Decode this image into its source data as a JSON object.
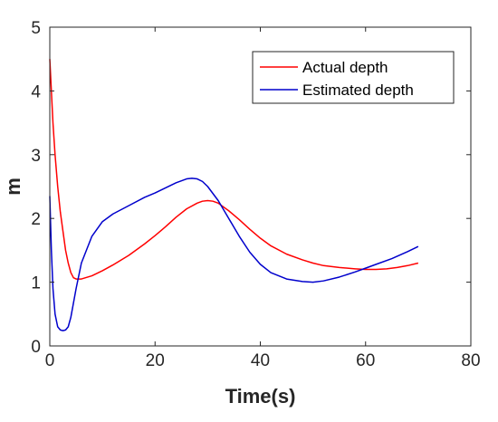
{
  "chart_data": {
    "type": "line",
    "title": "",
    "xlabel": "Time(s)",
    "ylabel": "m",
    "xlim": [
      0,
      80
    ],
    "ylim": [
      0,
      5
    ],
    "xticks": [
      0,
      20,
      40,
      60,
      80
    ],
    "yticks": [
      0,
      1,
      2,
      3,
      4,
      5
    ],
    "xtick_labels": [
      "0",
      "20",
      "40",
      "60",
      "80"
    ],
    "ytick_labels": [
      "0",
      "1",
      "2",
      "3",
      "4",
      "5"
    ],
    "grid": false,
    "legend": {
      "placement": "top-right",
      "entries": [
        "Actual depth",
        "Estimated depth"
      ]
    },
    "series": [
      {
        "name": "Actual depth",
        "color": "#ff0000",
        "x": [
          0,
          0.3,
          0.6,
          1,
          1.5,
          2,
          2.5,
          3,
          3.5,
          4,
          4.5,
          5,
          6,
          8,
          10,
          12,
          15,
          18,
          20,
          22,
          24,
          26,
          28,
          29,
          30,
          31,
          32,
          34,
          36,
          38,
          40,
          42,
          45,
          48,
          50,
          52,
          55,
          58,
          60,
          62,
          64,
          66,
          68,
          70
        ],
        "y": [
          4.5,
          4.0,
          3.5,
          3.0,
          2.5,
          2.1,
          1.8,
          1.5,
          1.3,
          1.15,
          1.07,
          1.05,
          1.05,
          1.1,
          1.18,
          1.27,
          1.42,
          1.6,
          1.73,
          1.87,
          2.02,
          2.15,
          2.24,
          2.27,
          2.28,
          2.27,
          2.24,
          2.12,
          1.98,
          1.83,
          1.69,
          1.57,
          1.44,
          1.35,
          1.3,
          1.26,
          1.23,
          1.21,
          1.2,
          1.2,
          1.21,
          1.23,
          1.26,
          1.3
        ]
      },
      {
        "name": "Estimated depth",
        "color": "#0000cc",
        "x": [
          0,
          0.3,
          0.6,
          1,
          1.5,
          2,
          2.5,
          3,
          3.5,
          4,
          5,
          6,
          8,
          10,
          12,
          15,
          18,
          20,
          22,
          24,
          26,
          27,
          28,
          29,
          30,
          32,
          34,
          36,
          38,
          40,
          42,
          45,
          48,
          50,
          52,
          55,
          58,
          60,
          62,
          65,
          68,
          70
        ],
        "y": [
          2.35,
          1.5,
          0.9,
          0.5,
          0.3,
          0.25,
          0.24,
          0.25,
          0.3,
          0.45,
          0.9,
          1.3,
          1.72,
          1.95,
          2.07,
          2.2,
          2.33,
          2.4,
          2.48,
          2.56,
          2.62,
          2.63,
          2.62,
          2.58,
          2.5,
          2.28,
          2.0,
          1.72,
          1.47,
          1.28,
          1.15,
          1.05,
          1.01,
          1.0,
          1.02,
          1.08,
          1.16,
          1.22,
          1.28,
          1.37,
          1.48,
          1.56
        ]
      }
    ]
  }
}
